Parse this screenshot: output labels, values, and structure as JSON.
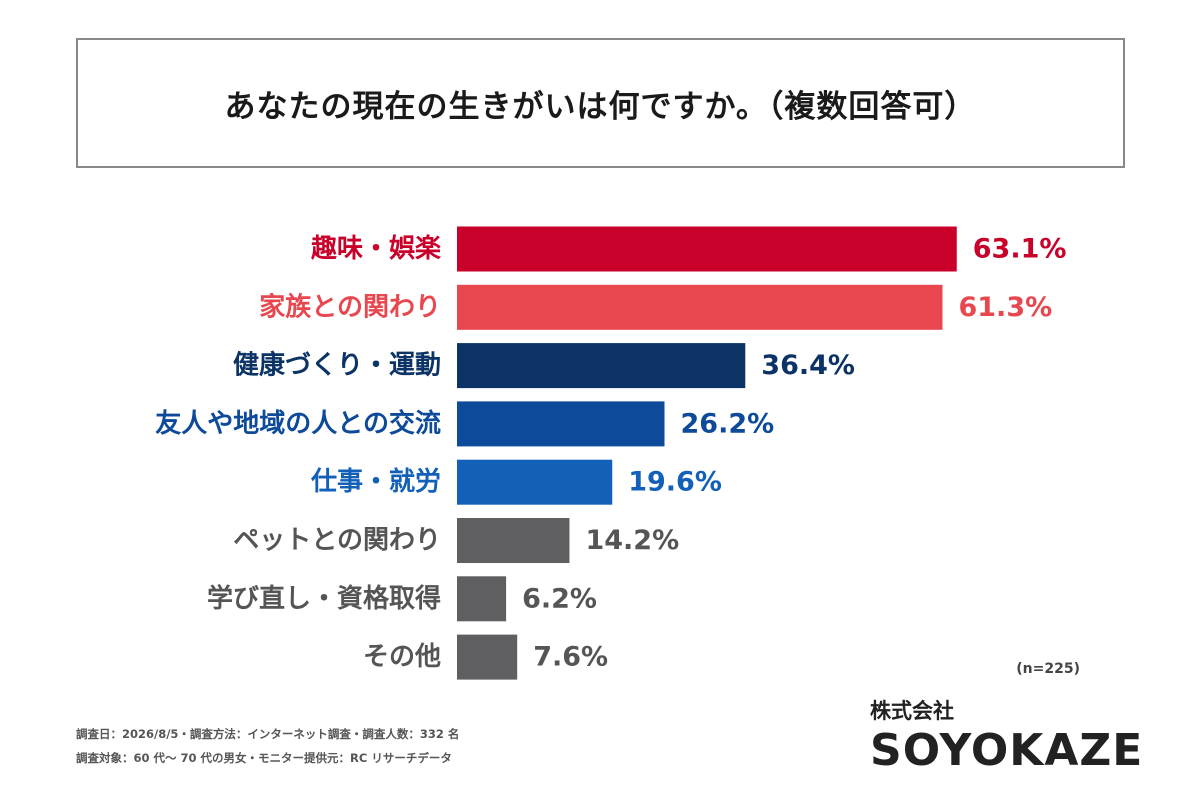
{
  "title": "あなたの現在の生きがいは何ですか。（複数回答可）",
  "sample_size": "(n=225)",
  "notes": [
    "調査日：2026/8/5・調査方法：インターネット調査・調査人数：332 名",
    "調査対象：60 代〜 70 代の男女・モニター提供元：RC リサーチデータ"
  ],
  "brand": {
    "sub": "株式会社",
    "name": "SOYOKAZE"
  },
  "chart_data": {
    "type": "bar",
    "orientation": "horizontal",
    "title": "あなたの現在の生きがいは何ですか。（複数回答可）",
    "xlabel": "",
    "ylabel": "",
    "unit": "%",
    "xlim": [
      0,
      100
    ],
    "grid": false,
    "categories": [
      "趣味・娯楽",
      "家族との関わり",
      "健康づくり・運動",
      "友人や地域の人との交流",
      "仕事・就労",
      "ペットとの関わり",
      "学び直し・資格取得",
      "その他"
    ],
    "values": [
      63.1,
      61.3,
      36.4,
      26.2,
      19.6,
      14.2,
      6.2,
      7.6
    ],
    "value_labels": [
      "63.1%",
      "61.3%",
      "36.4%",
      "26.2%",
      "19.6%",
      "14.2%",
      "6.2%",
      "7.6%"
    ],
    "bar_colors": [
      "#c8002a",
      "#e8474f",
      "#0b3366",
      "#0d4a9a",
      "#1260b8",
      "#5f5f62",
      "#5f5f62",
      "#5f5f62"
    ],
    "label_colors": [
      "#c8002a",
      "#e8474f",
      "#0b3366",
      "#0d4a9a",
      "#1260b8",
      "#555555",
      "#555555",
      "#555555"
    ]
  }
}
